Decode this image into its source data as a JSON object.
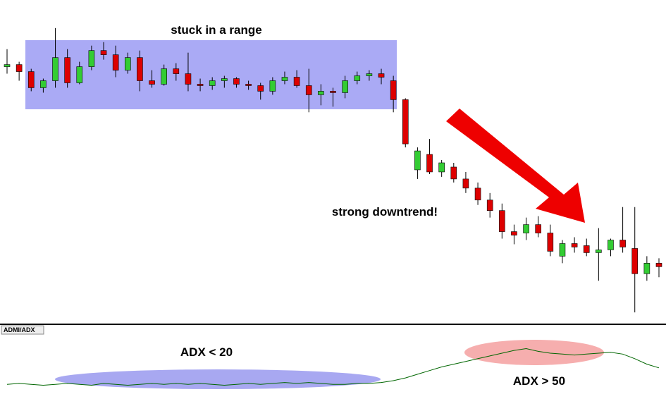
{
  "chart_data": [
    {
      "type": "candlestick",
      "annotations": [
        "stuck in a range",
        "strong downtrend!"
      ],
      "open": [
        365,
        368,
        358,
        335,
        345,
        378,
        342,
        365,
        388,
        382,
        360,
        378,
        345,
        340,
        362,
        355,
        340,
        338,
        345,
        348,
        340,
        338,
        330,
        345,
        350,
        338,
        325,
        330,
        328,
        345,
        352,
        355,
        345,
        318,
        218,
        240,
        215,
        222,
        205,
        192,
        175,
        160,
        130,
        128,
        140,
        128,
        95,
        113,
        110,
        100,
        104,
        118,
        106,
        70,
        85
      ],
      "high": [
        390,
        372,
        362,
        348,
        420,
        390,
        372,
        395,
        400,
        395,
        385,
        388,
        360,
        368,
        370,
        385,
        348,
        350,
        352,
        350,
        345,
        342,
        350,
        358,
        360,
        362,
        340,
        335,
        352,
        358,
        360,
        362,
        352,
        320,
        250,
        262,
        232,
        228,
        215,
        200,
        185,
        170,
        140,
        150,
        152,
        140,
        118,
        122,
        120,
        135,
        120,
        165,
        165,
        95,
        92
      ],
      "low": [
        355,
        345,
        330,
        328,
        335,
        335,
        340,
        360,
        375,
        350,
        355,
        330,
        335,
        338,
        345,
        330,
        330,
        332,
        335,
        335,
        332,
        318,
        325,
        340,
        335,
        300,
        310,
        308,
        320,
        340,
        345,
        340,
        300,
        250,
        205,
        212,
        208,
        200,
        185,
        168,
        150,
        120,
        112,
        118,
        122,
        95,
        85,
        100,
        95,
        60,
        95,
        100,
        15,
        60,
        65
      ],
      "close": [
        368,
        358,
        335,
        345,
        378,
        342,
        365,
        388,
        382,
        360,
        378,
        345,
        340,
        362,
        355,
        340,
        338,
        345,
        348,
        340,
        338,
        330,
        345,
        350,
        338,
        325,
        330,
        328,
        345,
        352,
        355,
        350,
        318,
        255,
        245,
        215,
        228,
        205,
        192,
        175,
        160,
        130,
        125,
        140,
        128,
        102,
        113,
        108,
        100,
        104,
        118,
        108,
        70,
        85,
        80
      ],
      "up_color": "#33cc33",
      "down_color": "#dd0000",
      "ylim": [
        0,
        460
      ]
    },
    {
      "type": "line",
      "title": "ADMI/ADX",
      "annotations": [
        "ADX < 20",
        "ADX > 50"
      ],
      "values": [
        16,
        17,
        16,
        15,
        16,
        17,
        16,
        15,
        17,
        16,
        15,
        16,
        17,
        16,
        17,
        16,
        17,
        16,
        15,
        16,
        17,
        16,
        17,
        18,
        17,
        18,
        17,
        16,
        16,
        17,
        17,
        18,
        20,
        23,
        27,
        31,
        35,
        38,
        41,
        44,
        47,
        50,
        53,
        55,
        52,
        50,
        49,
        48,
        49,
        50,
        51,
        49,
        44,
        38,
        34
      ],
      "color": "#006600",
      "ylim": [
        0,
        80
      ]
    }
  ]
}
